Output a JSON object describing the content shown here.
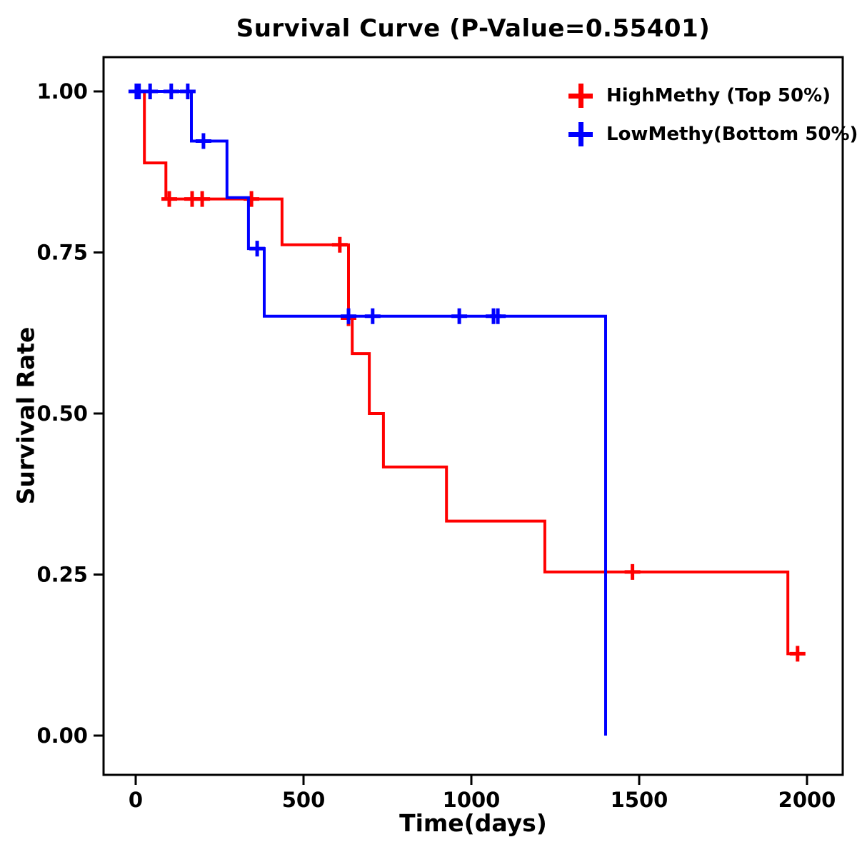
{
  "chart_data": {
    "type": "line",
    "variant": "kaplan_meier_step_curve",
    "title": "Survival Curve (P-Value=0.55401)",
    "p_value": 0.55401,
    "xlabel": "Time(days)",
    "ylabel": "Survival Rate",
    "xrange": [
      0,
      2000
    ],
    "yrange": [
      0,
      1
    ],
    "xticks": [
      0,
      500,
      1000,
      1500,
      2000
    ],
    "xtick_labels": [
      "0",
      "500",
      "1000",
      "1500",
      "2000"
    ],
    "yticks": [
      0,
      0.25,
      0.5,
      0.75,
      1
    ],
    "ytick_labels": [
      "0.00",
      "0.25",
      "0.50",
      "0.75",
      "1.00"
    ],
    "grid": false,
    "legend_position": "top-right",
    "marker_glyph": "plus",
    "series": [
      {
        "name": "HighMethy (Top 50%)",
        "color": "#FF0000",
        "steps": [
          [
            0,
            1.0
          ],
          [
            26,
            0.889
          ],
          [
            90,
            0.833
          ],
          [
            436,
            0.762
          ],
          [
            634,
            0.648
          ],
          [
            645,
            0.593
          ],
          [
            696,
            0.5
          ],
          [
            738,
            0.417
          ],
          [
            926,
            0.333
          ],
          [
            1219,
            0.254
          ],
          [
            1943,
            0.127
          ]
        ],
        "end_time": 1990,
        "censors": [
          [
            100,
            0.833
          ],
          [
            168,
            0.833
          ],
          [
            198,
            0.833
          ],
          [
            345,
            0.833
          ],
          [
            608,
            0.762
          ],
          [
            634,
            0.648
          ],
          [
            1480,
            0.254
          ],
          [
            1972,
            0.127
          ]
        ]
      },
      {
        "name": "LowMethy(Bottom 50%)",
        "color": "#0000FF",
        "steps": [
          [
            0,
            1.0
          ],
          [
            166,
            0.923
          ],
          [
            272,
            0.835
          ],
          [
            336,
            0.756
          ],
          [
            383,
            0.651
          ],
          [
            1400,
            0.0
          ]
        ],
        "end_time": 1400,
        "censors": [
          [
            2,
            1.0
          ],
          [
            10,
            1.0
          ],
          [
            43,
            1.0
          ],
          [
            106,
            1.0
          ],
          [
            155,
            1.0
          ],
          [
            202,
            0.923
          ],
          [
            362,
            0.756
          ],
          [
            634,
            0.651
          ],
          [
            706,
            0.651
          ],
          [
            964,
            0.651
          ],
          [
            1066,
            0.651
          ],
          [
            1079,
            0.651
          ]
        ]
      }
    ]
  }
}
